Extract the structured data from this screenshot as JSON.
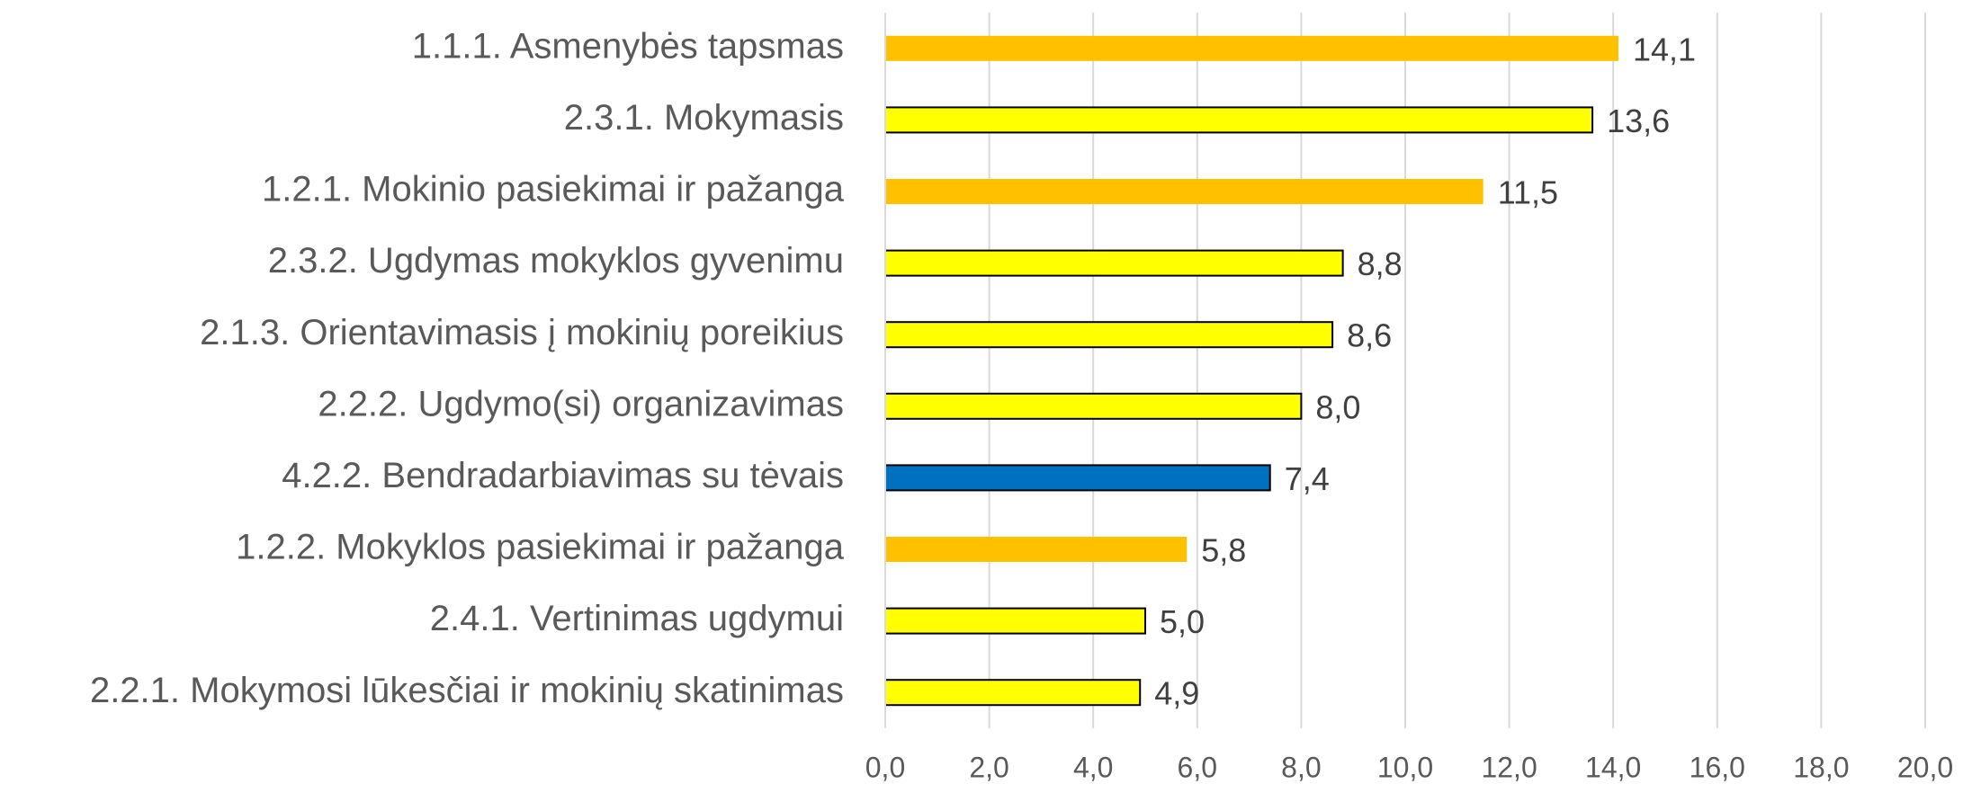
{
  "chart_data": {
    "type": "barh",
    "categories": [
      "1.1.1. Asmenybės tapsmas",
      "2.3.1. Mokymasis",
      "1.2.1. Mokinio pasiekimai ir pažanga",
      "2.3.2. Ugdymas mokyklos gyvenimu",
      "2.1.3. Orientavimasis į mokinių poreikius",
      "2.2.2. Ugdymo(si) organizavimas",
      "4.2.2. Bendradarbiavimas su tėvais",
      "1.2.2. Mokyklos pasiekimai ir pažanga",
      "2.4.1. Vertinimas ugdymui",
      "2.2.1. Mokymosi lūkesčiai ir mokinių skatinimas"
    ],
    "values": [
      14.1,
      13.6,
      11.5,
      8.8,
      8.6,
      8.0,
      7.4,
      5.8,
      5.0,
      4.9
    ],
    "value_labels": [
      "14,1",
      "13,6",
      "11,5",
      "8,8",
      "8,6",
      "8,0",
      "7,4",
      "5,8",
      "5,0",
      "4,9"
    ],
    "colors": [
      "#FFC000",
      "#FFFF00",
      "#FFC000",
      "#FFFF00",
      "#FFFF00",
      "#FFFF00",
      "#0070C0",
      "#FFC000",
      "#FFFF00",
      "#FFFF00"
    ],
    "edgecolors": [
      "none",
      "#000000",
      "none",
      "#000000",
      "#000000",
      "#000000",
      "#000000",
      "none",
      "#000000",
      "#000000"
    ],
    "xlim": [
      0,
      20
    ],
    "xticks": [
      {
        "value": 0,
        "label": "0,0"
      },
      {
        "value": 2,
        "label": "2,0"
      },
      {
        "value": 4,
        "label": "4,0"
      },
      {
        "value": 6,
        "label": "6,0"
      },
      {
        "value": 8,
        "label": "8,0"
      },
      {
        "value": 10,
        "label": "10,0"
      },
      {
        "value": 12,
        "label": "12,0"
      },
      {
        "value": 14,
        "label": "14,0"
      },
      {
        "value": 16,
        "label": "16,0"
      },
      {
        "value": 18,
        "label": "18,0"
      },
      {
        "value": 20,
        "label": "20,0"
      }
    ],
    "grid": true
  }
}
